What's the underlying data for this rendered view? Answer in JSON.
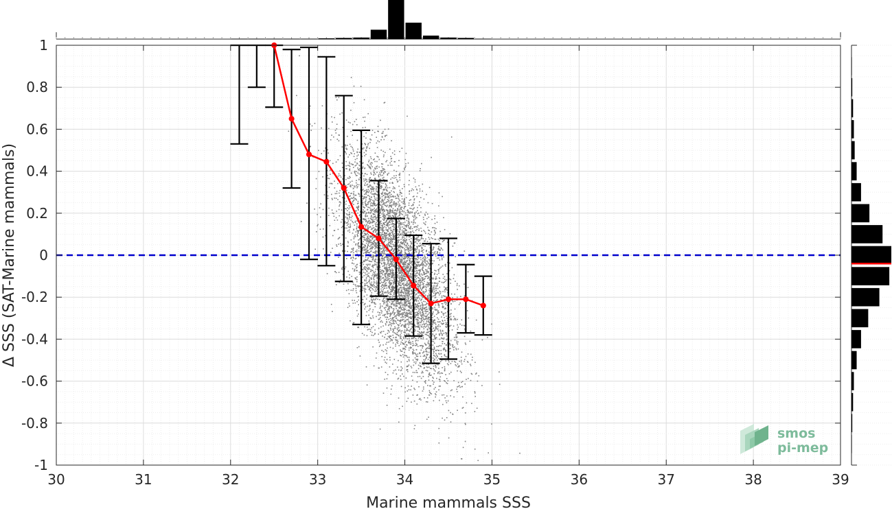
{
  "chart_data": {
    "type": "scatter",
    "xlabel": "Marine mammals SSS",
    "ylabel": "Δ SSS (SAT-Marine mammals)",
    "xlim": [
      30,
      39
    ],
    "ylim": [
      -1,
      1
    ],
    "x_ticks": [
      30,
      31,
      32,
      33,
      34,
      35,
      36,
      37,
      38,
      39
    ],
    "y_ticks": [
      -1,
      -0.8,
      -0.6,
      -0.4,
      -0.2,
      0,
      0.2,
      0.4,
      0.6,
      0.8,
      1
    ],
    "x_tick_labels": [
      "30",
      "31",
      "32",
      "33",
      "34",
      "35",
      "36",
      "37",
      "38",
      "39"
    ],
    "y_tick_labels": [
      "-1",
      "-0.8",
      "-0.6",
      "-0.4",
      "-0.2",
      "0",
      "0.2",
      "0.4",
      "0.6",
      "0.8",
      "1"
    ],
    "grid": true,
    "zero_line": {
      "y": 0,
      "color": "#0000cc",
      "style": "dashed"
    },
    "binned_series": {
      "x": [
        32.1,
        32.3,
        32.5,
        32.7,
        32.9,
        33.1,
        33.3,
        33.5,
        33.7,
        33.9,
        34.1,
        34.3,
        34.5,
        34.7,
        34.9
      ],
      "mean": [
        null,
        null,
        1.0,
        0.65,
        0.48,
        0.445,
        0.32,
        0.135,
        0.08,
        -0.02,
        -0.145,
        -0.23,
        -0.21,
        -0.21,
        -0.24
      ],
      "upper": [
        1.0,
        1.0,
        1.0,
        0.98,
        0.99,
        0.945,
        0.76,
        0.595,
        0.355,
        0.175,
        0.095,
        0.055,
        0.08,
        -0.045,
        -0.1
      ],
      "lower": [
        0.53,
        0.8,
        0.705,
        0.32,
        -0.02,
        -0.05,
        -0.125,
        -0.33,
        -0.195,
        -0.21,
        -0.385,
        -0.515,
        -0.495,
        -0.37,
        -0.38
      ],
      "line_color": "#ff0000",
      "errorbar_color": "#000000"
    },
    "scatter_cloud": {
      "color": "#808080",
      "center_x": 33.9,
      "center_y": -0.05,
      "sd_x": 0.33,
      "sd_y": 0.27,
      "correlation": -0.6
    },
    "top_histogram": {
      "x": [
        32.1,
        32.3,
        32.5,
        32.7,
        32.9,
        33.1,
        33.3,
        33.5,
        33.7,
        33.9,
        34.1,
        34.3,
        34.5,
        34.7,
        34.9
      ],
      "counts": [
        0.01,
        0.01,
        0.01,
        0.01,
        0.01,
        0.02,
        0.03,
        0.04,
        0.24,
        1.0,
        0.42,
        0.09,
        0.04,
        0.03,
        0.01
      ],
      "color": "#000000"
    },
    "right_histogram": {
      "y": [
        0.9,
        0.8,
        0.7,
        0.6,
        0.5,
        0.4,
        0.3,
        0.2,
        0.1,
        0.0,
        -0.1,
        -0.2,
        -0.3,
        -0.4,
        -0.5,
        -0.6,
        -0.7,
        -0.8,
        -0.9
      ],
      "counts": [
        0.01,
        0.02,
        0.04,
        0.06,
        0.08,
        0.13,
        0.24,
        0.45,
        0.78,
        1.0,
        0.95,
        0.7,
        0.42,
        0.24,
        0.13,
        0.06,
        0.04,
        0.02,
        0.01
      ],
      "color": "#000000",
      "median_y": -0.04,
      "median_color": "#ff0000"
    }
  },
  "logo": {
    "line1": "smos",
    "line2": "pi-mep",
    "color": "#7dbb9b"
  }
}
